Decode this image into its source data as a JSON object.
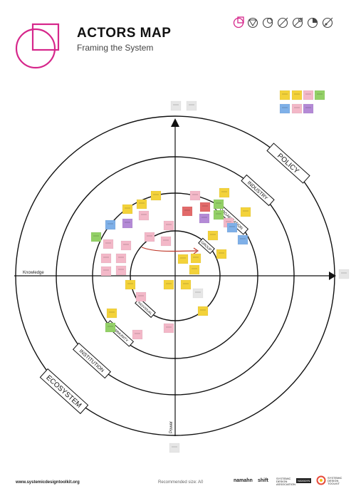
{
  "header": {
    "title": "ACTORS MAP",
    "subtitle": "Framing the System"
  },
  "axes": {
    "horizontal": "Knowledge",
    "vertical": "Power"
  },
  "rings": [
    {
      "label": "POLICY"
    },
    {
      "label": "INDUSTRY"
    },
    {
      "label": "ORGANISATION"
    },
    {
      "label": "GROUP"
    },
    {
      "label": "INDIVIDUAL"
    },
    {
      "label": "COMMUNITY"
    },
    {
      "label": "INSTITUTION"
    },
    {
      "label": "ECOSYSTEM"
    }
  ],
  "footer": {
    "url": "www.systemicdesigntoolkit.org",
    "recommended": "Recommended size: A0",
    "brands": [
      "namahn",
      "shift",
      "SYSTEMIC DESIGN ASSOCIATION",
      "NAMAHN",
      "SYSTEMIC DESIGN TOOLKIT"
    ]
  },
  "icons": [
    "framing-icon",
    "listening-icon",
    "understanding-icon",
    "defining-icon",
    "exploring-icon",
    "designing-icon",
    "fostering-icon"
  ],
  "colors": {
    "accent": "#d6278b",
    "yellow": "#f3d23a",
    "pink": "#f3b8c8",
    "red": "#e26a6a",
    "blue": "#7fb0e8",
    "purple": "#b48ad6",
    "green": "#93d067",
    "grey": "#e6e6e6"
  }
}
